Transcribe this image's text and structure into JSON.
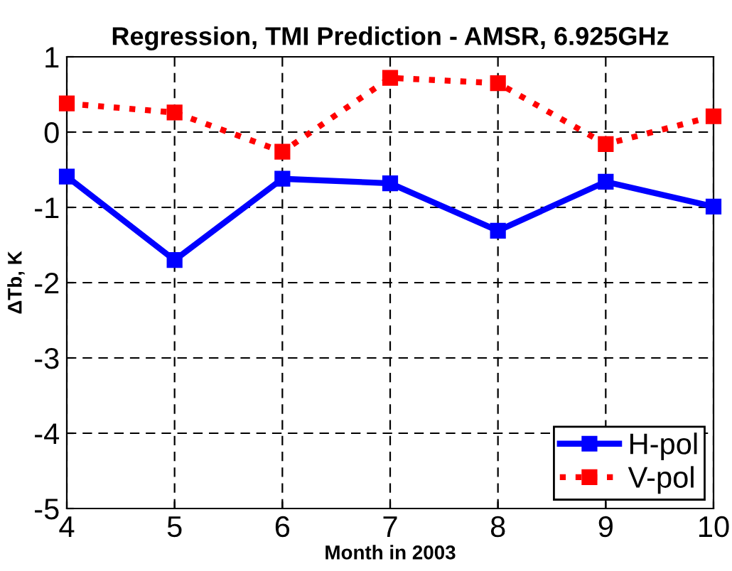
{
  "chart_data": {
    "type": "line",
    "title": "Regression, TMI Prediction - AMSR, 6.925GHz",
    "xlabel": "Month in 2003",
    "ylabel": "ΔTb, K",
    "x": [
      4,
      5,
      6,
      7,
      8,
      9,
      10
    ],
    "series": [
      {
        "name": "H-pol",
        "color": "#0000ff",
        "line_style": "solid",
        "values": [
          -0.59,
          -1.7,
          -0.62,
          -0.68,
          -1.31,
          -0.66,
          -0.99
        ]
      },
      {
        "name": "V-pol",
        "color": "#ff0000",
        "line_style": "dotted",
        "values": [
          0.38,
          0.26,
          -0.26,
          0.72,
          0.65,
          -0.16,
          0.21
        ]
      }
    ],
    "xlim": [
      4,
      10
    ],
    "xticks": [
      4,
      5,
      6,
      7,
      8,
      9,
      10
    ],
    "ylim": [
      -5,
      1
    ],
    "yticks": [
      -5,
      -4,
      -3,
      -2,
      -1,
      0,
      1
    ],
    "grid": true,
    "legend": "bottom right",
    "marker": "square"
  }
}
